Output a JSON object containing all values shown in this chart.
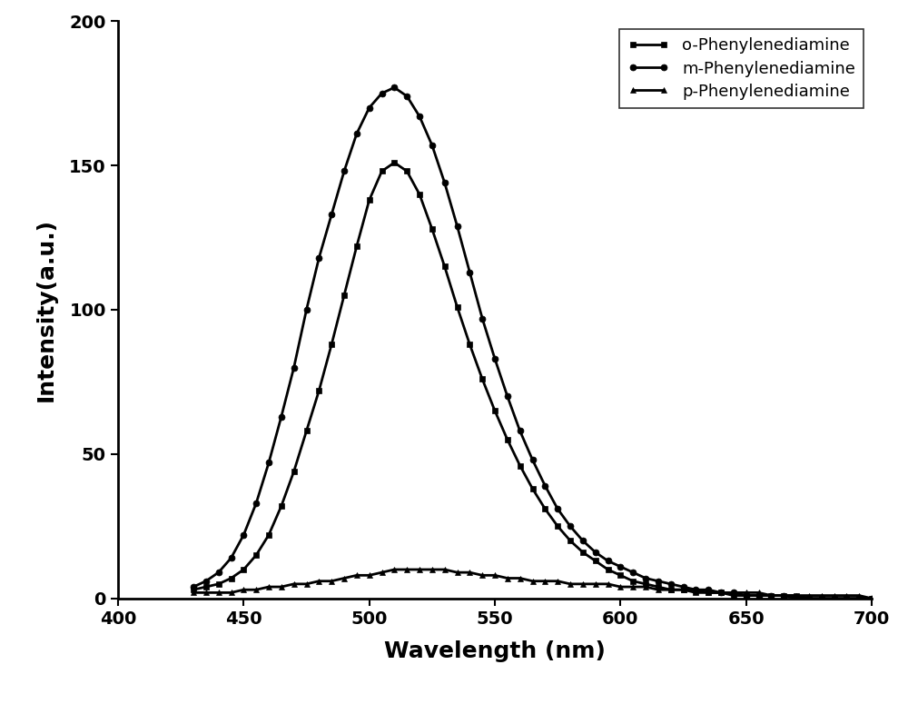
{
  "title": "",
  "xlabel": "Wavelength (nm)",
  "ylabel": "Intensity(a.u.)",
  "xlim": [
    400,
    700
  ],
  "ylim": [
    0,
    200
  ],
  "xticks": [
    400,
    450,
    500,
    550,
    600,
    650,
    700
  ],
  "yticks": [
    0,
    50,
    100,
    150,
    200
  ],
  "series": [
    {
      "label": "o-Phenylenediamine",
      "marker": "s",
      "color": "#000000",
      "wavelengths": [
        430,
        435,
        440,
        445,
        450,
        455,
        460,
        465,
        470,
        475,
        480,
        485,
        490,
        495,
        500,
        505,
        510,
        515,
        520,
        525,
        530,
        535,
        540,
        545,
        550,
        555,
        560,
        565,
        570,
        575,
        580,
        585,
        590,
        595,
        600,
        605,
        610,
        615,
        620,
        625,
        630,
        635,
        640,
        645,
        650,
        655,
        660,
        665,
        670,
        675,
        680,
        685,
        690,
        695,
        700
      ],
      "intensities": [
        3,
        4,
        5,
        7,
        10,
        15,
        22,
        32,
        44,
        58,
        72,
        88,
        105,
        122,
        138,
        148,
        151,
        148,
        140,
        128,
        115,
        101,
        88,
        76,
        65,
        55,
        46,
        38,
        31,
        25,
        20,
        16,
        13,
        10,
        8,
        6,
        5,
        4,
        3,
        3,
        2,
        2,
        2,
        1,
        1,
        1,
        1,
        1,
        1,
        0,
        0,
        0,
        0,
        0,
        0
      ]
    },
    {
      "label": "m-Phenylenediamine",
      "marker": "o",
      "color": "#000000",
      "wavelengths": [
        430,
        435,
        440,
        445,
        450,
        455,
        460,
        465,
        470,
        475,
        480,
        485,
        490,
        495,
        500,
        505,
        510,
        515,
        520,
        525,
        530,
        535,
        540,
        545,
        550,
        555,
        560,
        565,
        570,
        575,
        580,
        585,
        590,
        595,
        600,
        605,
        610,
        615,
        620,
        625,
        630,
        635,
        640,
        645,
        650,
        655,
        660,
        665,
        670,
        675,
        680,
        685,
        690,
        695,
        700
      ],
      "intensities": [
        4,
        6,
        9,
        14,
        22,
        33,
        47,
        63,
        80,
        100,
        118,
        133,
        148,
        161,
        170,
        175,
        177,
        174,
        167,
        157,
        144,
        129,
        113,
        97,
        83,
        70,
        58,
        48,
        39,
        31,
        25,
        20,
        16,
        13,
        11,
        9,
        7,
        6,
        5,
        4,
        3,
        3,
        2,
        2,
        1,
        1,
        1,
        1,
        0,
        0,
        0,
        0,
        0,
        0,
        0
      ]
    },
    {
      "label": "p-Phenylenediamine",
      "marker": "^",
      "color": "#000000",
      "wavelengths": [
        430,
        435,
        440,
        445,
        450,
        455,
        460,
        465,
        470,
        475,
        480,
        485,
        490,
        495,
        500,
        505,
        510,
        515,
        520,
        525,
        530,
        535,
        540,
        545,
        550,
        555,
        560,
        565,
        570,
        575,
        580,
        585,
        590,
        595,
        600,
        605,
        610,
        615,
        620,
        625,
        630,
        635,
        640,
        645,
        650,
        655,
        660,
        665,
        670,
        675,
        680,
        685,
        690,
        695,
        700
      ],
      "intensities": [
        2,
        2,
        2,
        2,
        3,
        3,
        4,
        4,
        5,
        5,
        6,
        6,
        7,
        8,
        8,
        9,
        10,
        10,
        10,
        10,
        10,
        9,
        9,
        8,
        8,
        7,
        7,
        6,
        6,
        6,
        5,
        5,
        5,
        5,
        4,
        4,
        4,
        3,
        3,
        3,
        3,
        2,
        2,
        2,
        2,
        2,
        1,
        1,
        1,
        1,
        1,
        1,
        1,
        1,
        0
      ]
    }
  ],
  "legend_loc": "upper right",
  "background_color": "#ffffff",
  "line_width": 2.0,
  "marker_size": 5,
  "tick_fontsize": 14,
  "label_fontsize": 18,
  "legend_fontsize": 13
}
